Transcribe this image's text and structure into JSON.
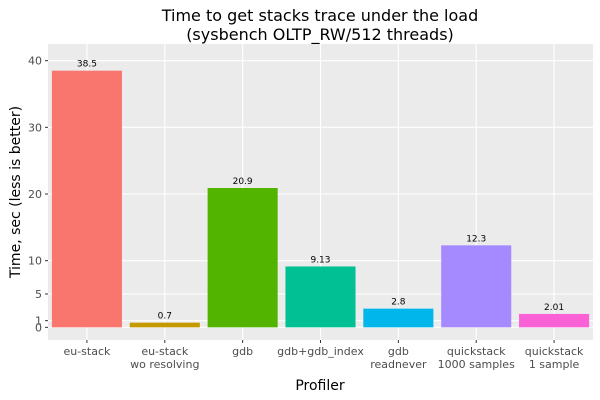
{
  "chart_data": {
    "type": "bar",
    "title": [
      "Time to get stacks trace under the load",
      "(sysbench OLTP_RW/512 threads)"
    ],
    "xlabel": "Profiler",
    "ylabel": "Time, sec (less is better)",
    "categories": [
      [
        "eu-stack"
      ],
      [
        "eu-stack",
        "wo resolving"
      ],
      [
        "gdb"
      ],
      [
        "gdb+gdb_index"
      ],
      [
        "gdb",
        "readnever"
      ],
      [
        "quickstack",
        "1000 samples"
      ],
      [
        "quickstack",
        "1 sample"
      ]
    ],
    "values": [
      38.5,
      0.7,
      20.9,
      9.13,
      2.8,
      12.3,
      2.01
    ],
    "data_labels": [
      "38.5",
      "0.7",
      "20.9",
      "9.13",
      "2.8",
      "12.3",
      "2.01"
    ],
    "colors": [
      "#F8766D",
      "#C49A00",
      "#53B400",
      "#00C094",
      "#00B6EB",
      "#A58AFF",
      "#FB61D7"
    ],
    "yticks": [
      0,
      1,
      5,
      10,
      20,
      30,
      40
    ],
    "ylim": [
      -1.9,
      42.5
    ],
    "grid": true,
    "legend": "none"
  }
}
